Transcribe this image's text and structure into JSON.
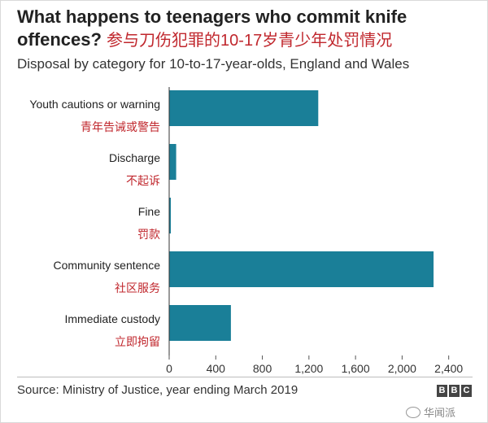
{
  "header": {
    "title_en": "What happens to teenagers who commit knife offences?",
    "title_zh": "参与刀伤犯罪的10-17岁青少年处罚情况",
    "subtitle": "Disposal by category for 10-to-17-year-olds, England and Wales"
  },
  "footer": {
    "source": "Source: Ministry of Justice, year ending March 2019",
    "logo": [
      "B",
      "B",
      "C"
    ],
    "watermark": "华闻派"
  },
  "colors": {
    "bar": "#1a7f98",
    "zh_label": "#c0272d",
    "en_label": "#222222",
    "axis": "#555555"
  },
  "chart_data": {
    "type": "bar",
    "orientation": "horizontal",
    "categories": [
      "Youth cautions or warning",
      "Discharge",
      "Fine",
      "Community sentence",
      "Immediate custody"
    ],
    "categories_zh": [
      "青年告诫或警告",
      "不起诉",
      "罚款",
      "社区服务",
      "立即拘留"
    ],
    "values": [
      1280,
      60,
      10,
      2270,
      530
    ],
    "xlim": [
      0,
      2500
    ],
    "xticks": [
      0,
      400,
      800,
      1200,
      1600,
      2000,
      2400
    ],
    "xtick_labels": [
      "0",
      "400",
      "800",
      "1,200",
      "1,600",
      "2,000",
      "2,400"
    ],
    "grid": false,
    "legend": "none"
  }
}
